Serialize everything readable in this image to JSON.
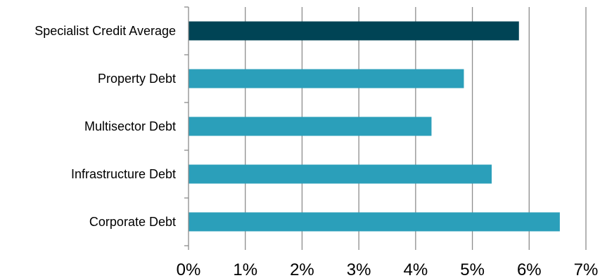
{
  "chart_data": {
    "type": "bar",
    "orientation": "horizontal",
    "categories": [
      "Specialist Credit Average",
      "Property Debt",
      "Multisector Debt",
      "Infrastructure Debt",
      "Corporate Debt"
    ],
    "values": [
      5.82,
      4.85,
      4.28,
      5.34,
      6.54
    ],
    "value_unit": "%",
    "bar_colors": [
      "#004455",
      "#2b9fba",
      "#2b9fba",
      "#2b9fba",
      "#2b9fba"
    ],
    "xlim": [
      0,
      7
    ],
    "x_tick_labels": [
      "0%",
      "1%",
      "2%",
      "3%",
      "4%",
      "5%",
      "6%",
      "7%"
    ],
    "grid": "vertical",
    "title": "",
    "xlabel": "",
    "ylabel": ""
  }
}
